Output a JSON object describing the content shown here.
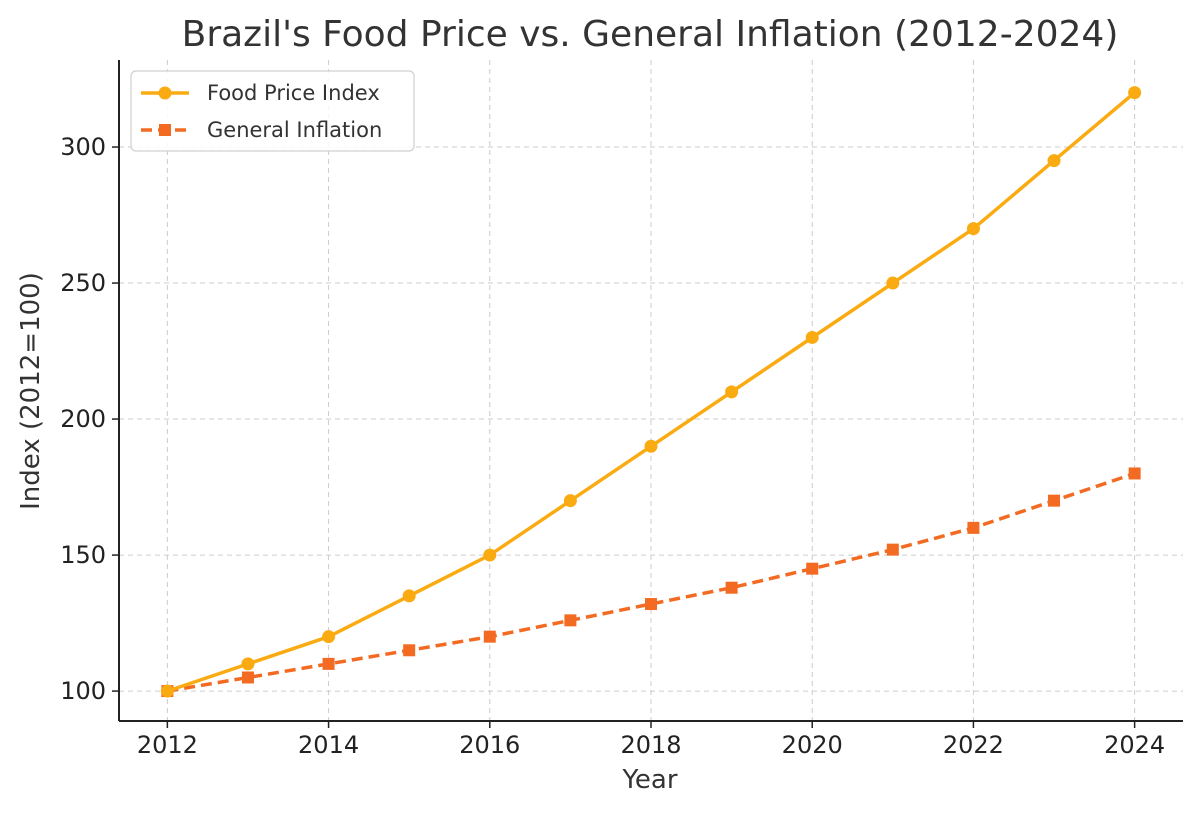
{
  "chart_data": {
    "type": "line",
    "title": "Brazil's Food Price vs. General Inflation (2012-2024)",
    "xlabel": "Year",
    "ylabel": "Index (2012=100)",
    "x": [
      2012,
      2013,
      2014,
      2015,
      2016,
      2017,
      2018,
      2019,
      2020,
      2021,
      2022,
      2023,
      2024
    ],
    "xticks": [
      "2012",
      "2014",
      "2016",
      "2018",
      "2020",
      "2022",
      "2024"
    ],
    "yticks": [
      "100",
      "150",
      "200",
      "250",
      "300"
    ],
    "xlim": [
      2011.4,
      2024.6
    ],
    "ylim": [
      89,
      332
    ],
    "grid": true,
    "legend_position": "top-left",
    "series": [
      {
        "name": "Food Price Index",
        "values": [
          100,
          110,
          120,
          135,
          150,
          170,
          190,
          210,
          230,
          250,
          270,
          295,
          320
        ],
        "color": "#fbab12",
        "marker": "circle",
        "line_style": "solid"
      },
      {
        "name": "General Inflation",
        "values": [
          100,
          105,
          110,
          115,
          120,
          126,
          132,
          138,
          145,
          152,
          160,
          170,
          180
        ],
        "color": "#f36b22",
        "marker": "square",
        "line_style": "dashed"
      }
    ]
  }
}
